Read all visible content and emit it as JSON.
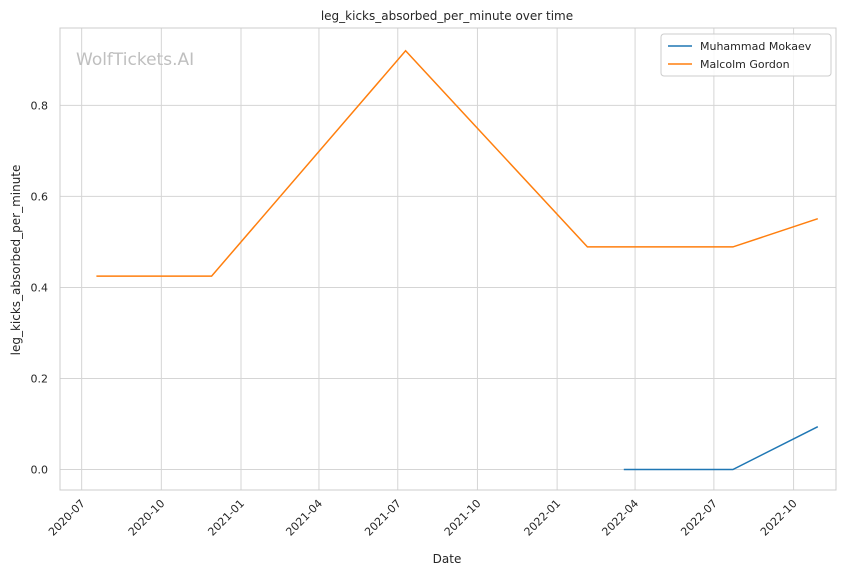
{
  "chart_data": {
    "type": "line",
    "title": "leg_kicks_absorbed_per_minute over time",
    "xlabel": "Date",
    "ylabel": "leg_kicks_absorbed_per_minute",
    "watermark": "WolfTickets.AI",
    "grid": true,
    "legend_position": "top-right",
    "xlim": [
      "2020-06-06",
      "2022-11-19"
    ],
    "ylim": [
      -0.045,
      0.97
    ],
    "x_ticks": [
      "2020-07-01",
      "2020-10-01",
      "2021-01-01",
      "2021-04-01",
      "2021-07-01",
      "2021-10-01",
      "2022-01-01",
      "2022-04-01",
      "2022-07-01",
      "2022-10-01"
    ],
    "x_tick_labels": [
      "2020-07",
      "2020-10",
      "2021-01",
      "2021-04",
      "2021-07",
      "2021-10",
      "2022-01",
      "2022-04",
      "2022-07",
      "2022-10"
    ],
    "y_ticks": [
      0.0,
      0.2,
      0.4,
      0.6,
      0.8
    ],
    "y_tick_labels": [
      "0.0",
      "0.2",
      "0.4",
      "0.6",
      "0.8"
    ],
    "series": [
      {
        "name": "Muhammad Mokaev",
        "color": "#1f77b4",
        "x": [
          "2022-03-19",
          "2022-07-23",
          "2022-10-29"
        ],
        "values": [
          0.0,
          0.0,
          0.094
        ]
      },
      {
        "name": "Malcolm Gordon",
        "color": "#ff7f0e",
        "x": [
          "2020-07-18",
          "2020-11-28",
          "2021-07-10",
          "2022-02-05",
          "2022-07-23",
          "2022-10-29"
        ],
        "values": [
          0.425,
          0.425,
          0.92,
          0.489,
          0.489,
          0.551
        ]
      }
    ]
  }
}
